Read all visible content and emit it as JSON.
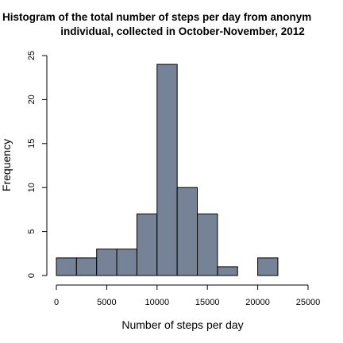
{
  "chart_data": {
    "type": "bar",
    "title_lines": [
      "Histogram of the total  number of steps per day from  anonym",
      "individual, collected in October-November, 2012"
    ],
    "xlabel": "Number of steps per day",
    "ylabel": "Frequency",
    "xlim": [
      0,
      25000
    ],
    "ylim": [
      0,
      25
    ],
    "x_ticks": [
      0,
      5000,
      10000,
      15000,
      20000,
      25000
    ],
    "y_ticks": [
      0,
      5,
      10,
      15,
      20,
      25
    ],
    "bin_width": 2000,
    "bins": [
      {
        "start": 0,
        "end": 2000,
        "count": 2
      },
      {
        "start": 2000,
        "end": 4000,
        "count": 2
      },
      {
        "start": 4000,
        "end": 6000,
        "count": 3
      },
      {
        "start": 6000,
        "end": 8000,
        "count": 3
      },
      {
        "start": 8000,
        "end": 10000,
        "count": 7
      },
      {
        "start": 10000,
        "end": 12000,
        "count": 24
      },
      {
        "start": 12000,
        "end": 14000,
        "count": 10
      },
      {
        "start": 14000,
        "end": 16000,
        "count": 7
      },
      {
        "start": 16000,
        "end": 18000,
        "count": 1
      },
      {
        "start": 18000,
        "end": 20000,
        "count": 0
      },
      {
        "start": 20000,
        "end": 22000,
        "count": 2
      }
    ],
    "bar_color": "#768396",
    "grid": false,
    "legend": "none"
  }
}
